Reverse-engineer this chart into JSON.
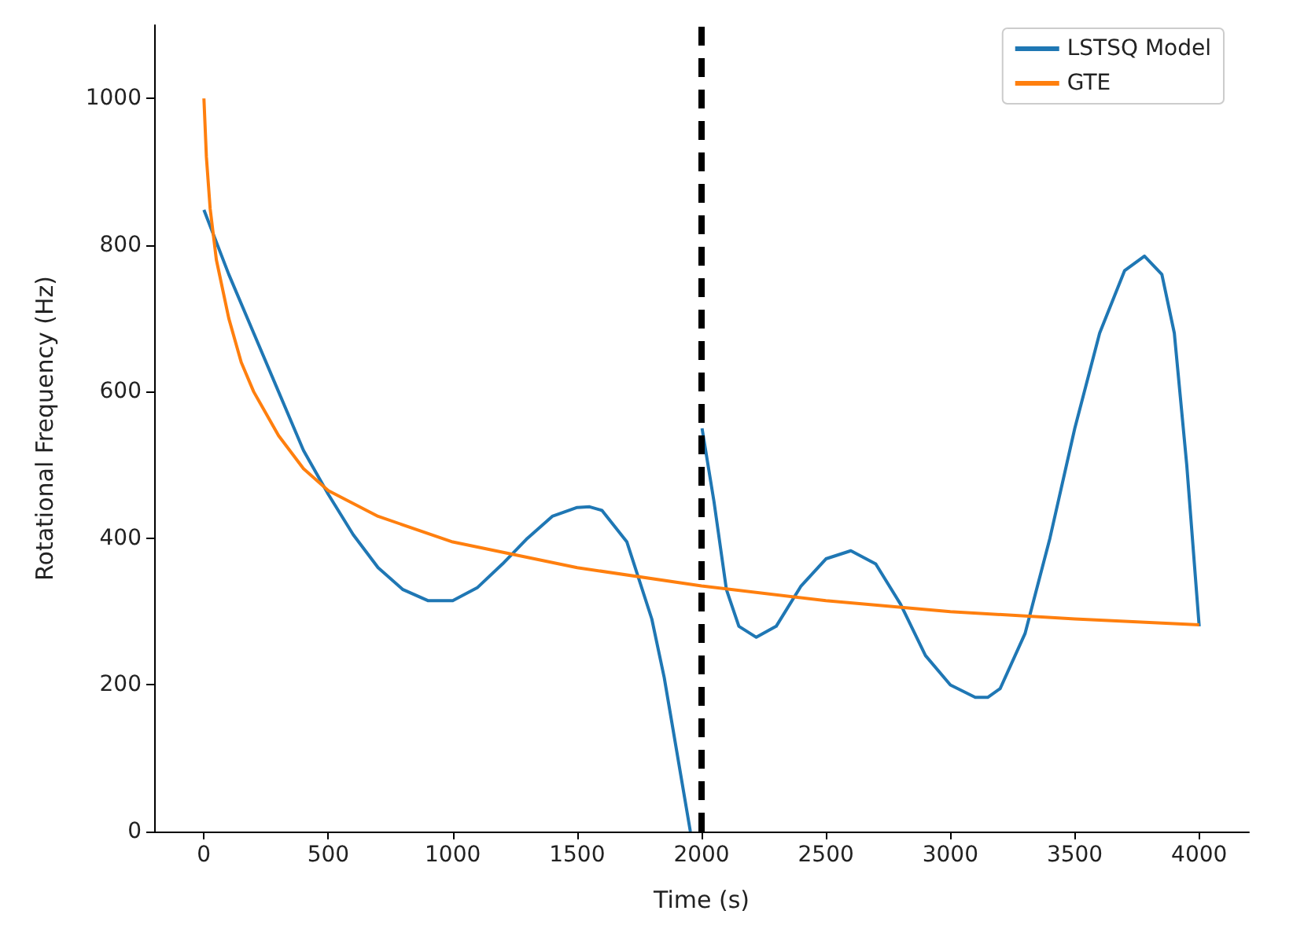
{
  "chart_data": {
    "type": "line",
    "xlabel": "Time (s)",
    "ylabel": "Rotational Frequency (Hz)",
    "xlim": [
      -200,
      4200
    ],
    "ylim": [
      0,
      1100
    ],
    "xticks": [
      0,
      500,
      1000,
      1500,
      2000,
      2500,
      3000,
      3500,
      4000
    ],
    "yticks": [
      0,
      200,
      400,
      600,
      800,
      1000
    ],
    "grid": false,
    "legend": "top right",
    "marker": "none",
    "line_style": "solid",
    "series": [
      {
        "name": "LSTSQ Model",
        "color": "#1f77b4",
        "x": [
          0,
          100,
          200,
          300,
          400,
          500,
          600,
          700,
          800,
          900,
          1000,
          1100,
          1200,
          1300,
          1400,
          1500,
          1550,
          1600,
          1700,
          1800,
          1850,
          1900,
          1955,
          1980,
          2002,
          2050,
          2100,
          2150,
          2220,
          2300,
          2400,
          2500,
          2600,
          2700,
          2800,
          2900,
          3000,
          3100,
          3150,
          3200,
          3300,
          3400,
          3500,
          3600,
          3700,
          3780,
          3850,
          3900,
          3950,
          4000
        ],
        "values": [
          848,
          760,
          680,
          600,
          520,
          460,
          405,
          360,
          330,
          315,
          315,
          333,
          365,
          400,
          430,
          442,
          443,
          438,
          395,
          290,
          210,
          110,
          0,
          null,
          550,
          450,
          330,
          280,
          265,
          280,
          335,
          372,
          383,
          365,
          310,
          240,
          200,
          183,
          183,
          195,
          270,
          400,
          550,
          680,
          765,
          785,
          760,
          680,
          500,
          280
        ]
      },
      {
        "name": "GTE",
        "color": "#ff7f0e",
        "x": [
          0,
          10,
          25,
          50,
          100,
          150,
          200,
          300,
          400,
          500,
          700,
          1000,
          1500,
          2000,
          2500,
          3000,
          3500,
          4000
        ],
        "values": [
          1000,
          920,
          850,
          780,
          700,
          640,
          600,
          540,
          495,
          465,
          430,
          395,
          360,
          335,
          315,
          300,
          290,
          282
        ]
      }
    ],
    "ref_lines": [
      {
        "axis": "x",
        "value": 2000,
        "color": "#000000",
        "line_style": "dashed"
      }
    ]
  }
}
